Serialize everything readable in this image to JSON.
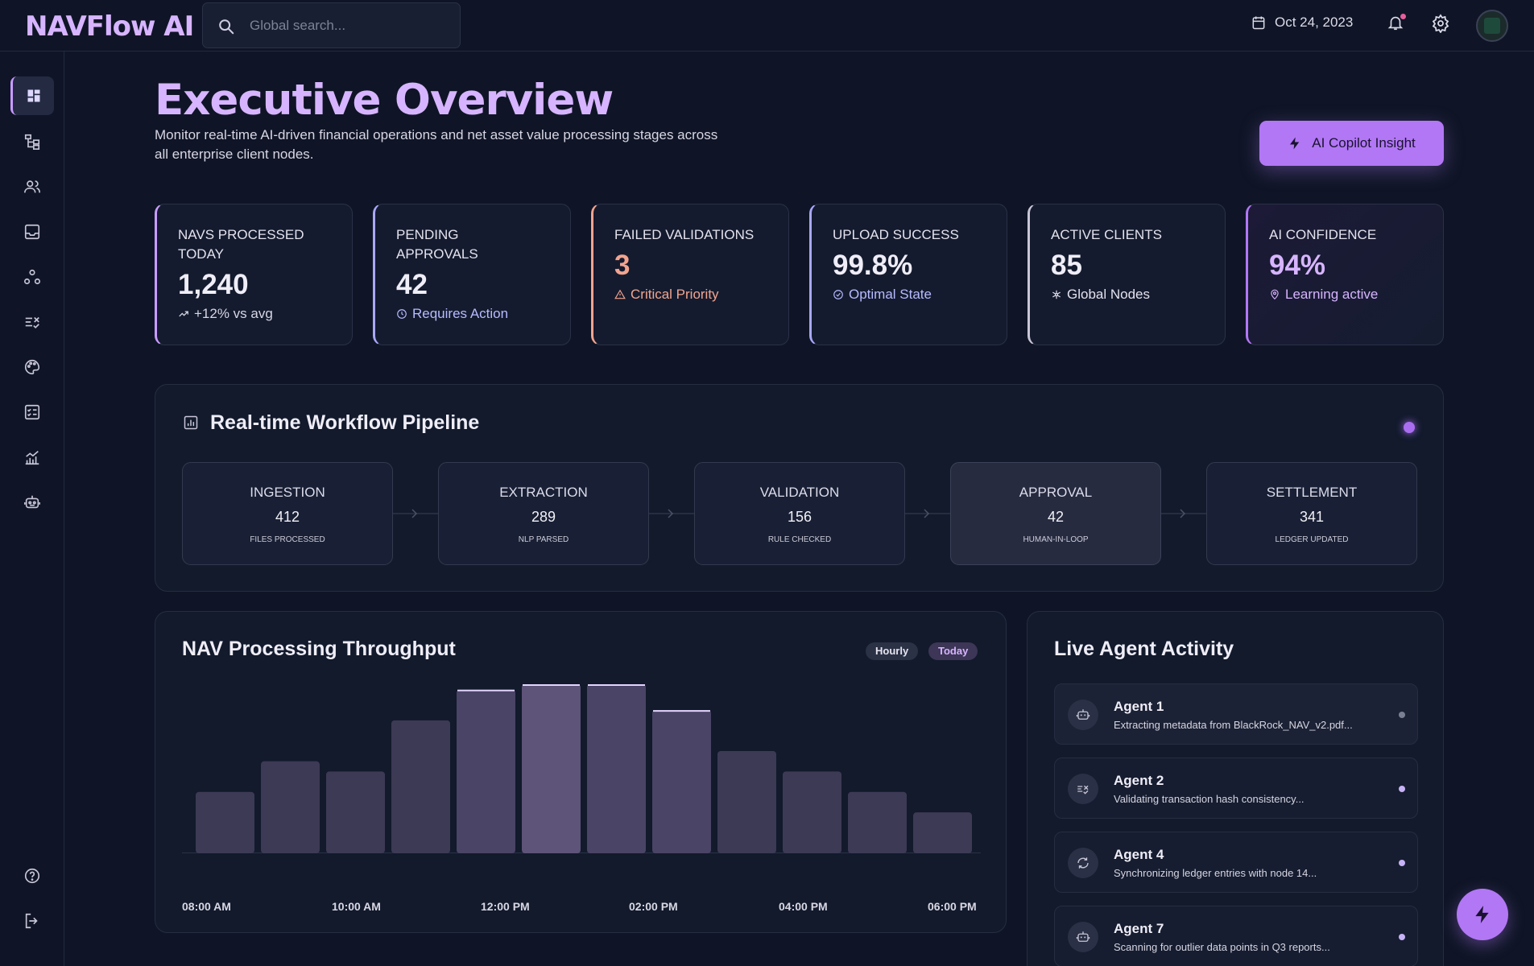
{
  "app": {
    "logo": "NAVFlow AI"
  },
  "header": {
    "search_placeholder": "Global search...",
    "date": "Oct 24, 2023",
    "icons": [
      "search-icon",
      "calendar-icon",
      "bell-icon",
      "gear-icon",
      "avatar"
    ]
  },
  "sidebar": {
    "items": [
      {
        "icon": "dashboard-icon",
        "active": true
      },
      {
        "icon": "workflow-icon"
      },
      {
        "icon": "users-icon"
      },
      {
        "icon": "inbox-icon"
      },
      {
        "icon": "nodes-icon"
      },
      {
        "icon": "validation-icon"
      },
      {
        "icon": "palette-icon"
      },
      {
        "icon": "checklist-icon"
      },
      {
        "icon": "analytics-icon"
      },
      {
        "icon": "robot-icon"
      }
    ],
    "bottom": [
      {
        "icon": "help-icon"
      },
      {
        "icon": "logout-icon"
      }
    ]
  },
  "page": {
    "title": "Executive Overview",
    "subtitle": "Monitor real-time AI-driven financial operations and net asset value processing stages across all enterprise client nodes.",
    "copilot_button": "AI Copilot Insight"
  },
  "kpis": [
    {
      "label": "NAVS PROCESSED TODAY",
      "value": "1,240",
      "sub": "+12% vs avg",
      "icon": "trend-up-icon",
      "accent": "#c89cff",
      "val_color": "#efedf7",
      "sub_color": "#d8d6e4"
    },
    {
      "label": "PENDING APPROVALS",
      "value": "42",
      "sub": "Requires Action",
      "icon": "clock-icon",
      "accent": "#a9a8ff",
      "val_color": "#efedf7",
      "sub_color": "#b6bbff"
    },
    {
      "label": "FAILED VALIDATIONS",
      "value": "3",
      "sub": "Critical Priority",
      "icon": "warning-icon",
      "accent": "#f2a48f",
      "val_color": "#f2a48f",
      "sub_color": "#f2a48f"
    },
    {
      "label": "UPLOAD SUCCESS",
      "value": "99.8%",
      "sub": "Optimal State",
      "icon": "check-circle-icon",
      "accent": "#a9a8ff",
      "val_color": "#efedf7",
      "sub_color": "#b6bbff"
    },
    {
      "label": "ACTIVE CLIENTS",
      "value": "85",
      "sub": "Global Nodes",
      "icon": "nodes-icon",
      "accent": "#c9c6d8",
      "val_color": "#efedf7",
      "sub_color": "#e4e2ee"
    },
    {
      "label": "AI CONFIDENCE",
      "value": "94%",
      "sub": "Learning active",
      "icon": "brain-icon",
      "accent": "#b277f5",
      "val_color": "#d7b4ff",
      "sub_color": "#d7b4ff"
    }
  ],
  "pipeline": {
    "title": "Real-time Workflow Pipeline",
    "stages": [
      {
        "name": "INGESTION",
        "value": "412",
        "desc": "FILES PROCESSED"
      },
      {
        "name": "EXTRACTION",
        "value": "289",
        "desc": "NLP PARSED"
      },
      {
        "name": "VALIDATION",
        "value": "156",
        "desc": "RULE CHECKED"
      },
      {
        "name": "APPROVAL",
        "value": "42",
        "desc": "HUMAN-IN-LOOP",
        "highlight": true
      },
      {
        "name": "SETTLEMENT",
        "value": "341",
        "desc": "LEDGER UPDATED"
      }
    ]
  },
  "throughput": {
    "title": "NAV Processing Throughput",
    "toggles": [
      "Hourly",
      "Today"
    ],
    "selected": "Today",
    "x_labels": [
      "08:00 AM",
      "10:00 AM",
      "12:00 PM",
      "02:00 PM",
      "04:00 PM",
      "06:00 PM"
    ]
  },
  "chart_data": {
    "type": "bar",
    "title": "NAV Processing Throughput",
    "xlabel": "",
    "ylabel": "",
    "x_tick_labels": [
      "08:00 AM",
      "10:00 AM",
      "12:00 PM",
      "02:00 PM",
      "04:00 PM",
      "06:00 PM"
    ],
    "values": [
      30,
      45,
      40,
      65,
      80,
      95,
      85,
      70,
      50,
      40,
      30,
      20
    ],
    "highlighted": [
      false,
      false,
      false,
      false,
      true,
      true,
      true,
      true,
      false,
      false,
      false,
      false
    ],
    "ylim": [
      0,
      100
    ],
    "grid": false,
    "colors": {
      "bar": "#3d3a55",
      "peak": "#5e5379",
      "top_highlight": "#e4d5ff"
    }
  },
  "agents": {
    "title": "Live Agent Activity",
    "items": [
      {
        "name": "Agent 1",
        "desc": "Extracting metadata from BlackRock_NAV_v2.pdf...",
        "icon": "robot-icon",
        "highlight": true
      },
      {
        "name": "Agent 2",
        "desc": "Validating transaction hash consistency...",
        "icon": "validation-icon"
      },
      {
        "name": "Agent 4",
        "desc": "Synchronizing ledger entries with node 14...",
        "icon": "sync-icon"
      },
      {
        "name": "Agent 7",
        "desc": "Scanning for outlier data points in Q3 reports...",
        "icon": "robot-icon"
      }
    ]
  },
  "fab": {
    "icon": "bolt-icon"
  },
  "colors": {
    "bg": "#0f1526",
    "card": "#141b2e",
    "accent": "#b277f5",
    "logo": "#d7b4ff"
  }
}
